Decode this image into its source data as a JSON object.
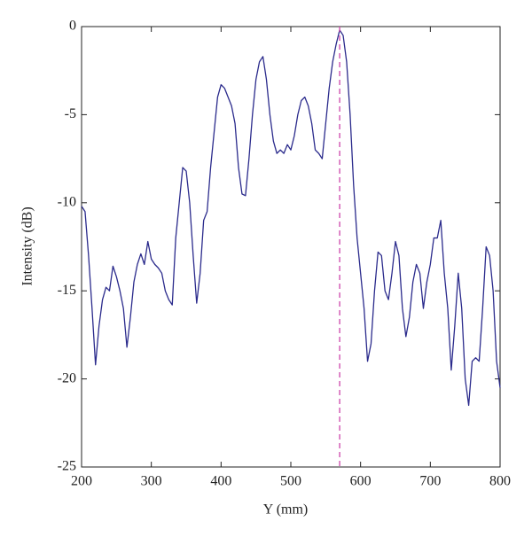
{
  "chart_data": {
    "type": "line",
    "xlabel": "Y (mm)",
    "ylabel": "Intensity (dB)",
    "xlim": [
      200,
      800
    ],
    "xticks": [
      200,
      300,
      400,
      500,
      600,
      700,
      800
    ],
    "ylim": [
      -25,
      0
    ],
    "yticks": [
      -25,
      -20,
      -15,
      -10,
      -5,
      0
    ],
    "marker_x": 570,
    "marker_color": "#cc44aa",
    "x": [
      200,
      205,
      210,
      215,
      220,
      225,
      230,
      235,
      240,
      245,
      250,
      255,
      260,
      265,
      270,
      275,
      280,
      285,
      290,
      295,
      300,
      305,
      310,
      315,
      320,
      325,
      330,
      335,
      340,
      345,
      350,
      355,
      360,
      365,
      370,
      375,
      380,
      385,
      390,
      395,
      400,
      405,
      410,
      415,
      420,
      425,
      430,
      435,
      440,
      445,
      450,
      455,
      460,
      465,
      470,
      475,
      480,
      485,
      490,
      495,
      500,
      505,
      510,
      515,
      520,
      525,
      530,
      535,
      540,
      545,
      550,
      555,
      560,
      565,
      570,
      575,
      580,
      585,
      590,
      595,
      600,
      605,
      610,
      615,
      620,
      625,
      630,
      635,
      640,
      645,
      650,
      655,
      660,
      665,
      670,
      675,
      680,
      685,
      690,
      695,
      700,
      705,
      710,
      715,
      720,
      725,
      730,
      735,
      740,
      745,
      750,
      755,
      760,
      765,
      770,
      775,
      780,
      785,
      790,
      795,
      800
    ],
    "series": [
      {
        "color": "#2b2b8c",
        "values": [
          -10.2,
          -10.5,
          -13,
          -16,
          -19.2,
          -17,
          -15.5,
          -14.8,
          -15,
          -13.6,
          -14.2,
          -15,
          -16,
          -18.2,
          -16.5,
          -14.5,
          -13.5,
          -12.9,
          -13.5,
          -12.2,
          -13.2,
          -13.5,
          -13.7,
          -14,
          -15,
          -15.5,
          -15.8,
          -12,
          -10,
          -8,
          -8.2,
          -10,
          -13,
          -15.7,
          -14,
          -11,
          -10.5,
          -8,
          -6,
          -4,
          -3.3,
          -3.5,
          -4,
          -4.5,
          -5.5,
          -8,
          -9.5,
          -9.6,
          -7.5,
          -5,
          -3,
          -2,
          -1.7,
          -3,
          -5,
          -6.5,
          -7.2,
          -7,
          -7.2,
          -6.7,
          -7,
          -6.2,
          -5,
          -4.2,
          -4,
          -4.5,
          -5.5,
          -7,
          -7.2,
          -7.5,
          -5.5,
          -3.5,
          -2,
          -1,
          -0.2,
          -0.5,
          -2,
          -5,
          -9,
          -12,
          -14,
          -16,
          -19,
          -18,
          -15,
          -12.8,
          -13,
          -15,
          -15.5,
          -14,
          -12.2,
          -13,
          -16,
          -17.6,
          -16.5,
          -14.5,
          -13.5,
          -14,
          -16,
          -14.5,
          -13.5,
          -12,
          -12,
          -11,
          -14,
          -16,
          -19.5,
          -17,
          -14,
          -16,
          -20,
          -21.5,
          -19,
          -18.8,
          -19,
          -16,
          -12.5,
          -13,
          -15,
          -19,
          -20.5
        ]
      }
    ]
  }
}
